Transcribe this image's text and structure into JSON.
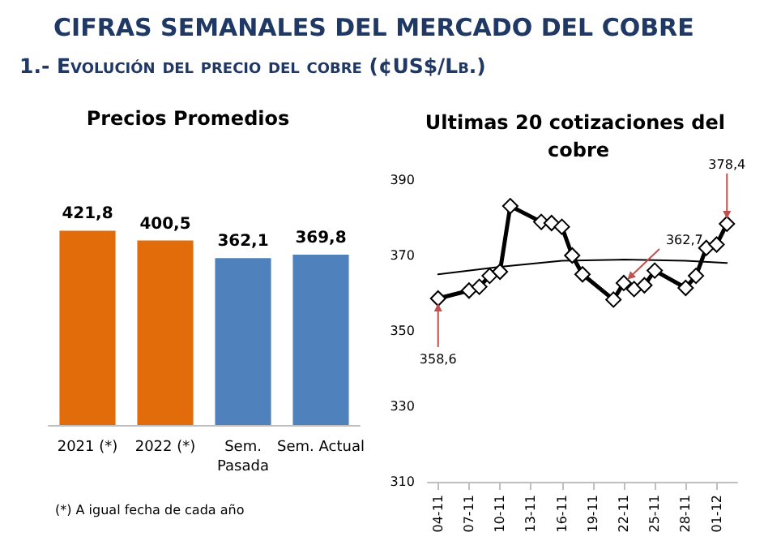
{
  "chart_data": [
    {
      "type": "bar",
      "title": "Precios Promedios",
      "annotations": [
        "CIFRAS SEMANALES DEL MERCADO DEL COBRE",
        "1.- Evolución del precio del cobre (¢US$/Lb.)",
        "(*) A igual fecha de cada año"
      ],
      "categories": [
        "2021 (*)",
        "2022 (*)",
        "Sem.\nPasada",
        "Sem. Actual"
      ],
      "values": [
        421.8,
        400.5,
        362.1,
        369.8
      ],
      "colors": [
        "#e36c0a",
        "#e36c0a",
        "#4f81bd",
        "#4f81bd"
      ],
      "value_labels": [
        "421,8",
        "400,5",
        "362,1",
        "369,8"
      ],
      "tick_labels": "x",
      "grid": false
    },
    {
      "type": "line",
      "title": "Ultimas 20 cotizaciones del cobre",
      "marker": "diamond",
      "grid": false,
      "xlim": [
        "--11-03",
        "--12-03"
      ],
      "xticks": [
        {
          "value": "--11-04",
          "label": "04-11"
        },
        {
          "value": "--11-07",
          "label": "07-11"
        },
        {
          "value": "--11-10",
          "label": "10-11"
        },
        {
          "value": "--11-13",
          "label": "13-11"
        },
        {
          "value": "--11-16",
          "label": "16-11"
        },
        {
          "value": "--11-19",
          "label": "19-11"
        },
        {
          "value": "--11-22",
          "label": "22-11"
        },
        {
          "value": "--11-25",
          "label": "25-11"
        },
        {
          "value": "--11-28",
          "label": "28-11"
        },
        {
          "value": "--12-01",
          "label": "01-12"
        }
      ],
      "ylim": [
        310,
        390
      ],
      "yticks": [
        310,
        330,
        350,
        370,
        390
      ],
      "series": [
        {
          "color": "#000000",
          "x": [
            "--11-04",
            "--11-07",
            "--11-08",
            "--11-09",
            "--11-10",
            "--11-11",
            "--11-14",
            "--11-15",
            "--11-16",
            "--11-17",
            "--11-18",
            "--11-21",
            "--11-22",
            "--11-23",
            "--11-24",
            "--11-25",
            "--11-28",
            "--11-29",
            "--11-30",
            "--12-01",
            "--12-02"
          ],
          "values": [
            358.6,
            360.7,
            361.7,
            364.6,
            365.7,
            383.1,
            378.9,
            378.6,
            377.6,
            370,
            365,
            358.3,
            362.7,
            361.1,
            362.1,
            366,
            361.4,
            364.6,
            372,
            372.9,
            378.4
          ]
        },
        {
          "type": "line",
          "color": "#000000",
          "marker": "none",
          "x": [
            "--11-04",
            "--11-10",
            "--11-16",
            "--11-22",
            "--11-28",
            "--12-02"
          ],
          "values": [
            365,
            367,
            368.6,
            368.9,
            368.6,
            368
          ]
        }
      ],
      "annotations": [
        {
          "text": "358,6",
          "x": "--11-04",
          "y": 358.6
        },
        {
          "text": "362,7",
          "x": "--11-22",
          "y": 362.7
        },
        {
          "text": "378,4",
          "x": "--12-02",
          "y": 378.4
        }
      ]
    }
  ]
}
